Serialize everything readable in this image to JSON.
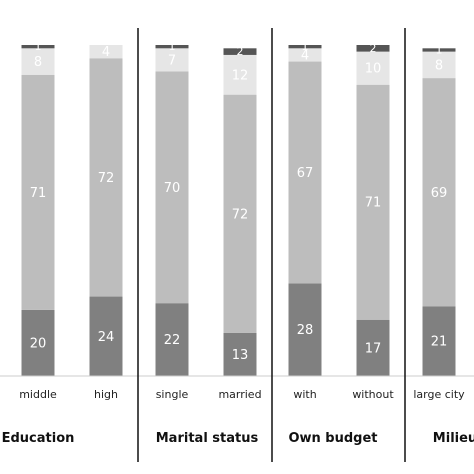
{
  "chart_data": {
    "type": "bar",
    "stacked": true,
    "ylim": [
      0,
      100
    ],
    "segment_colors": [
      "#808080",
      "#bdbdbd",
      "#e6e6e6",
      "#555555"
    ],
    "groups": [
      {
        "label": "Education",
        "bars": [
          {
            "category": "middle",
            "segments": [
              20,
              71,
              8,
              1
            ]
          },
          {
            "category": "high",
            "segments": [
              24,
              72,
              4,
              0
            ]
          }
        ]
      },
      {
        "label": "Marital status",
        "bars": [
          {
            "category": "single",
            "segments": [
              22,
              70,
              7,
              1
            ]
          },
          {
            "category": "married",
            "segments": [
              13,
              72,
              12,
              2
            ]
          }
        ]
      },
      {
        "label": "Own budget",
        "bars": [
          {
            "category": "with",
            "segments": [
              28,
              67,
              4,
              1
            ]
          },
          {
            "category": "without",
            "segments": [
              17,
              71,
              10,
              2
            ]
          }
        ]
      },
      {
        "label": "Milieu",
        "bars": [
          {
            "category": "large city",
            "segments": [
              21,
              69,
              8,
              1
            ]
          }
        ]
      }
    ]
  }
}
